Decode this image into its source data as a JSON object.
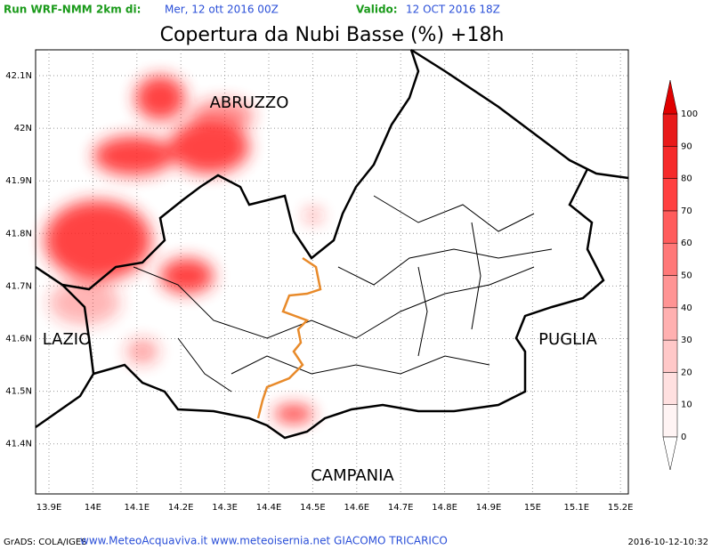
{
  "header": {
    "run_label": "Run WRF-NMM 2km di:",
    "run_date": "Mer, 12 ott 2016 00Z",
    "valid_label": "Valido:",
    "valid_date": "12 OCT 2016 18Z"
  },
  "title": "Copertura da Nubi Basse (%) +18h",
  "map": {
    "lon_ticks": [
      "13.9E",
      "14E",
      "14.1E",
      "14.2E",
      "14.3E",
      "14.4E",
      "14.5E",
      "14.6E",
      "14.7E",
      "14.8E",
      "14.9E",
      "15E",
      "15.1E",
      "15.2E"
    ],
    "lat_ticks": [
      "42.1N",
      "42N",
      "41.9N",
      "41.8N",
      "41.7N",
      "41.6N",
      "41.5N",
      "41.4N"
    ],
    "regions": [
      "ABRUZZO",
      "LAZIO",
      "PUGLIA",
      "CAMPANIA"
    ]
  },
  "colorbar": {
    "ticks": [
      0,
      10,
      20,
      30,
      40,
      50,
      60,
      70,
      80,
      90,
      100
    ],
    "colors": [
      "#fff4f4",
      "#ffe0e0",
      "#ffc8c8",
      "#ffb0b0",
      "#ff9494",
      "#ff7878",
      "#ff5c5c",
      "#ff4040",
      "#f52a2a",
      "#e81a1a"
    ],
    "top_color": "#e00000"
  },
  "footer": {
    "source": "GrADS: COLA/IGES",
    "credits": "www.MeteoAcquaviva.it www.meteoisernia.net GIACOMO TRICARICO",
    "timestamp": "2016-10-12-10:32"
  }
}
